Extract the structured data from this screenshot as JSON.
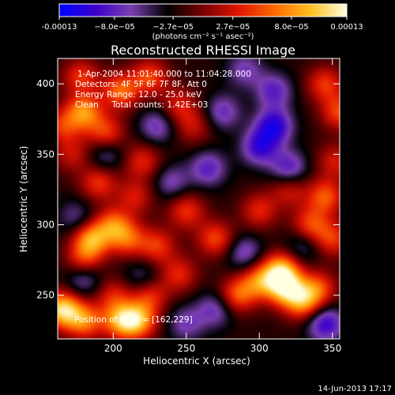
{
  "chart_data": {
    "type": "heatmap",
    "title": "Reconstructed RHESSI Image",
    "xlabel": "Heliocentric X (arcsec)",
    "ylabel": "Heliocentric Y (arcsec)",
    "xlim": [
      162,
      355
    ],
    "ylim": [
      219,
      418
    ],
    "x_ticks": [
      200,
      250,
      300,
      350
    ],
    "y_ticks": [
      250,
      300,
      350,
      400
    ],
    "x_tick_labels": [
      "200",
      "250",
      "300",
      "350"
    ],
    "y_tick_labels": [
      "250",
      "300",
      "350",
      "400"
    ],
    "colorbar": {
      "range": [
        -0.00013,
        0.00013
      ],
      "ticks": [
        -0.00013,
        -8e-05,
        -2.7e-05,
        2.7e-05,
        8e-05,
        0.00013
      ],
      "tick_labels": [
        "-0.00013",
        "−8.0e−05",
        "−2.7e−05",
        "2.7e−05",
        "8.0e−05",
        "0.00013"
      ],
      "unit_label": "(photons cm⁻² s⁻¹ asec⁻²)",
      "colors": [
        "#0000ff",
        "#3a00cc",
        "#7a3fb0",
        "#000000",
        "#7a0000",
        "#e01500",
        "#ff6a00",
        "#ffc020",
        "#ffffe0"
      ]
    },
    "annotations": [
      "1-Apr-2004 11:01:40.000 to 11:04:28.000",
      "Detectors: 4F 5F 6F 7F 8F, Att 0",
      "Energy Range: 12.0 - 25.0 keV",
      "Clean     Total counts: 1.42E+03",
      "Position of Peak = [162,229]"
    ],
    "sources": [
      {
        "x": 165,
        "y": 240,
        "value": 1.0
      },
      {
        "x": 180,
        "y": 232,
        "value": 0.7
      },
      {
        "x": 205,
        "y": 232,
        "value": 0.75
      },
      {
        "x": 200,
        "y": 250,
        "value": 0.4
      },
      {
        "x": 217,
        "y": 232,
        "value": 0.8
      },
      {
        "x": 225,
        "y": 250,
        "value": 0.5
      },
      {
        "x": 180,
        "y": 275,
        "value": 0.5
      },
      {
        "x": 185,
        "y": 290,
        "value": 0.8
      },
      {
        "x": 200,
        "y": 300,
        "value": 0.6
      },
      {
        "x": 210,
        "y": 290,
        "value": 0.55
      },
      {
        "x": 230,
        "y": 285,
        "value": 0.5
      },
      {
        "x": 245,
        "y": 265,
        "value": 0.45
      },
      {
        "x": 285,
        "y": 250,
        "value": 0.6
      },
      {
        "x": 300,
        "y": 260,
        "value": 0.65
      },
      {
        "x": 315,
        "y": 268,
        "value": 0.85
      },
      {
        "x": 318,
        "y": 255,
        "value": 0.9
      },
      {
        "x": 330,
        "y": 245,
        "value": 0.7
      },
      {
        "x": 340,
        "y": 255,
        "value": 0.55
      },
      {
        "x": 270,
        "y": 290,
        "value": 0.55
      },
      {
        "x": 250,
        "y": 310,
        "value": 0.5
      },
      {
        "x": 300,
        "y": 310,
        "value": 0.45
      },
      {
        "x": 335,
        "y": 300,
        "value": 0.55
      },
      {
        "x": 345,
        "y": 320,
        "value": 0.6
      },
      {
        "x": 350,
        "y": 290,
        "value": 0.5
      },
      {
        "x": 320,
        "y": 325,
        "value": 0.4
      },
      {
        "x": 220,
        "y": 345,
        "value": 0.45
      },
      {
        "x": 215,
        "y": 320,
        "value": 0.4
      },
      {
        "x": 180,
        "y": 380,
        "value": 0.75
      },
      {
        "x": 195,
        "y": 365,
        "value": 0.55
      },
      {
        "x": 205,
        "y": 395,
        "value": 0.65
      },
      {
        "x": 225,
        "y": 405,
        "value": 0.55
      },
      {
        "x": 178,
        "y": 405,
        "value": 0.5
      },
      {
        "x": 190,
        "y": 330,
        "value": 0.5
      },
      {
        "x": 172,
        "y": 350,
        "value": 0.35
      },
      {
        "x": 165,
        "y": 370,
        "value": 0.45
      },
      {
        "x": 255,
        "y": 370,
        "value": 0.35
      },
      {
        "x": 245,
        "y": 385,
        "value": 0.4
      },
      {
        "x": 355,
        "y": 380,
        "value": 0.55
      },
      {
        "x": 345,
        "y": 400,
        "value": 0.5
      },
      {
        "x": 352,
        "y": 345,
        "value": 0.4
      },
      {
        "x": 300,
        "y": 355,
        "value": -0.55
      },
      {
        "x": 310,
        "y": 370,
        "value": -0.65
      },
      {
        "x": 320,
        "y": 340,
        "value": -0.5
      },
      {
        "x": 275,
        "y": 380,
        "value": -0.4
      },
      {
        "x": 265,
        "y": 340,
        "value": -0.45
      },
      {
        "x": 230,
        "y": 370,
        "value": -0.4
      },
      {
        "x": 310,
        "y": 395,
        "value": -0.45
      },
      {
        "x": 345,
        "y": 230,
        "value": -0.6
      },
      {
        "x": 240,
        "y": 330,
        "value": -0.35
      },
      {
        "x": 175,
        "y": 305,
        "value": -0.3
      },
      {
        "x": 270,
        "y": 240,
        "value": -0.4
      },
      {
        "x": 250,
        "y": 230,
        "value": -0.35
      },
      {
        "x": 180,
        "y": 262,
        "value": -0.4
      },
      {
        "x": 220,
        "y": 262,
        "value": -0.3
      },
      {
        "x": 290,
        "y": 280,
        "value": -0.4
      },
      {
        "x": 330,
        "y": 285,
        "value": -0.3
      },
      {
        "x": 290,
        "y": 410,
        "value": -0.35
      },
      {
        "x": 195,
        "y": 350,
        "value": -0.35
      }
    ]
  },
  "footer": {
    "date": "14-Jun-2013 17:17"
  }
}
